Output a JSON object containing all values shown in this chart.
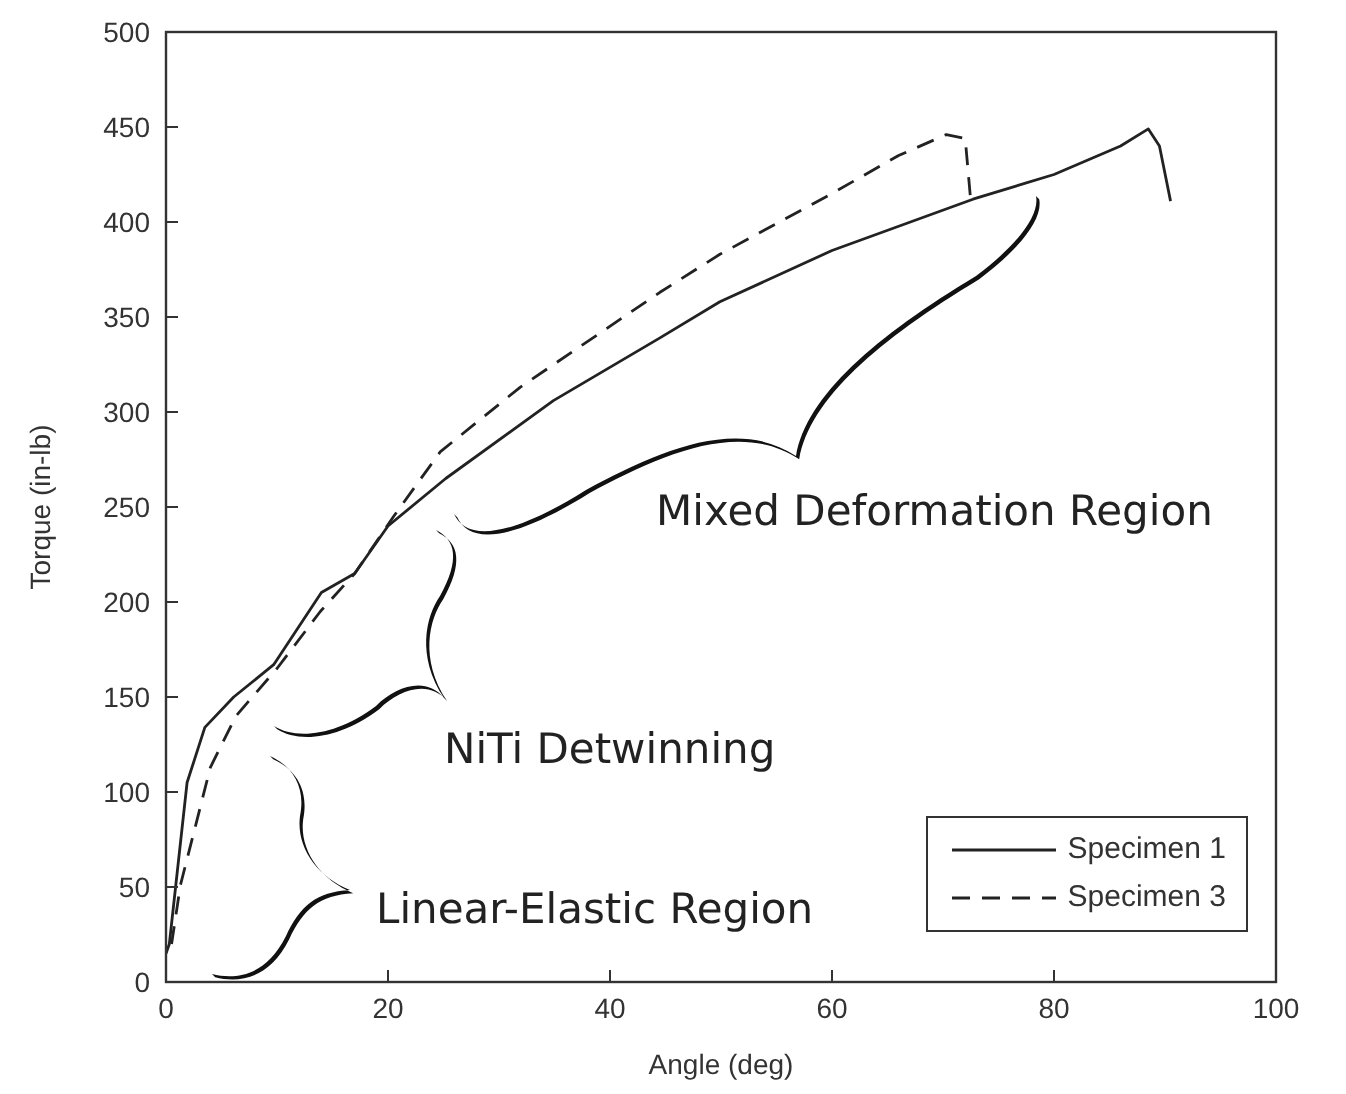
{
  "chart_data": {
    "type": "line",
    "xlabel": "Angle (deg)",
    "ylabel": "Torque (in-lb)",
    "xlim": [
      0,
      100
    ],
    "xticks": [
      0,
      20,
      40,
      60,
      80,
      100
    ],
    "ylim": [
      0,
      500
    ],
    "yticks": [
      0,
      50,
      100,
      150,
      200,
      250,
      300,
      350,
      400,
      450,
      500
    ],
    "grid": false,
    "legend": "bottom right",
    "marker": "none",
    "series": [
      {
        "name": "Specimen 1",
        "color": "#222222",
        "line_style": "solid",
        "x": [
          0,
          0.3,
          1.9,
          3.5,
          6.1,
          9.7,
          14,
          17,
          20,
          25.2,
          34.9,
          44.5,
          49.9,
          60,
          72.7,
          80,
          86,
          88.5,
          89.5,
          90.5
        ],
        "values": [
          15,
          20,
          105,
          134,
          150,
          167,
          205,
          215,
          240,
          265,
          306,
          339,
          358,
          385,
          412,
          425,
          440,
          449,
          440,
          411
        ]
      },
      {
        "name": "Specimen 3",
        "color": "#222222",
        "line_style": "dashed",
        "x": [
          0.5,
          1.3,
          4,
          6.3,
          10,
          13.9,
          17,
          20.5,
          24.7,
          31.9,
          44.5,
          49.9,
          60,
          66,
          70.3,
          72,
          72.5
        ],
        "values": [
          20,
          51,
          113,
          140,
          165,
          195,
          215,
          245,
          279,
          313,
          363,
          383,
          415,
          435,
          446,
          444,
          411
        ]
      }
    ],
    "annotations": [
      "Mixed Deformation Region",
      "NiTi Detwinning",
      "Linear-Elastic Region"
    ]
  }
}
